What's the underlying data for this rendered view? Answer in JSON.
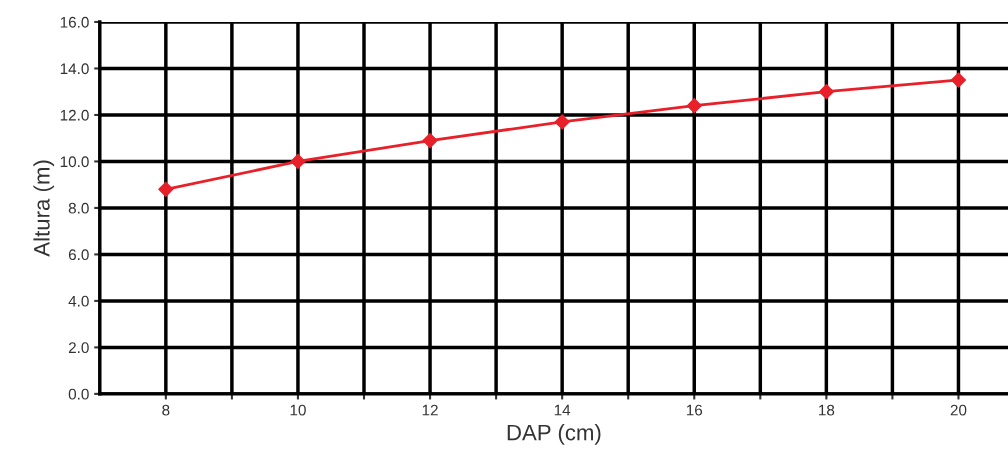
{
  "chart_data": {
    "type": "line",
    "xlabel": "DAP (cm)",
    "ylabel": "Altura (m)",
    "x": [
      8,
      10,
      12,
      14,
      16,
      18,
      20
    ],
    "series": [
      {
        "color": "#e8202a",
        "values": [
          8.8,
          10.0,
          10.9,
          11.7,
          12.4,
          13.0,
          13.5
        ]
      }
    ],
    "xlim": [
      7,
      20.75
    ],
    "xticks": [
      8,
      {
        "value": 9,
        "label": null
      },
      10,
      {
        "value": 11,
        "label": null
      },
      12,
      {
        "value": 13,
        "label": null
      },
      14,
      {
        "value": 15,
        "label": null
      },
      16,
      {
        "value": 17,
        "label": null
      },
      18,
      {
        "value": 19,
        "label": null
      },
      20
    ],
    "ylim": [
      0,
      16
    ],
    "yticks": [
      {
        "value": 0,
        "label": "0.0"
      },
      {
        "value": 2,
        "label": "2.0"
      },
      {
        "value": 4,
        "label": "4.0"
      },
      {
        "value": 6,
        "label": "6.0"
      },
      {
        "value": 8,
        "label": "8.0"
      },
      {
        "value": 10,
        "label": "10.0"
      },
      {
        "value": 12,
        "label": "12.0"
      },
      {
        "value": 14,
        "label": "14.0"
      },
      {
        "value": 16,
        "label": "16.0"
      }
    ],
    "grid": true,
    "marker": "diamond",
    "line_style": "solid"
  }
}
